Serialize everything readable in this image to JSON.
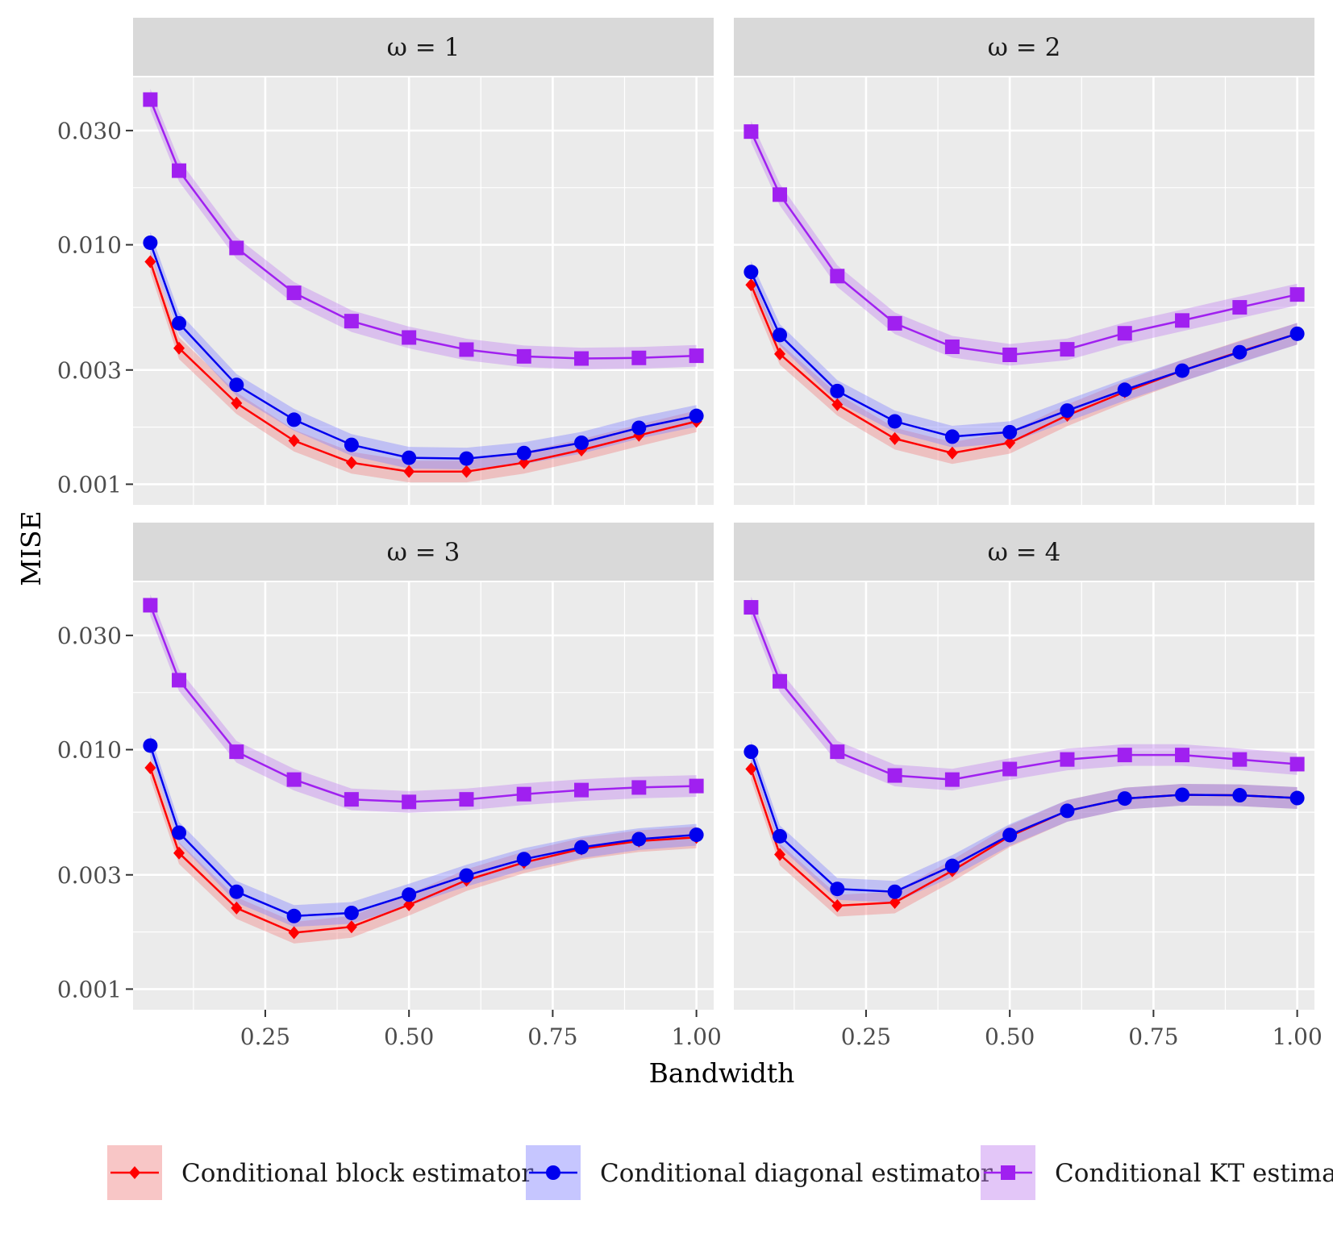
{
  "chart_data": {
    "type": "line",
    "xlabel": "Bandwidth",
    "ylabel": "MISE",
    "yscale": "log10",
    "ylim": [
      0.00082,
      0.05
    ],
    "xlim": [
      0.02,
      1.03
    ],
    "x_ticks": [
      {
        "value": 0.25,
        "label": "0.25"
      },
      {
        "value": 0.5,
        "label": "0.50"
      },
      {
        "value": 0.75,
        "label": "0.75"
      },
      {
        "value": 1.0,
        "label": "1.00"
      }
    ],
    "y_ticks": [
      {
        "value": 0.001,
        "label": "0.001"
      },
      {
        "value": 0.003,
        "label": "0.003"
      },
      {
        "value": 0.01,
        "label": "0.010"
      },
      {
        "value": 0.03,
        "label": "0.030"
      }
    ],
    "x": [
      0.05,
      0.1,
      0.2,
      0.3,
      0.4,
      0.5,
      0.6,
      0.7,
      0.8,
      0.9,
      1.0
    ],
    "series_meta": [
      {
        "name": "Conditional block estimator",
        "color": "#ff0000",
        "fill": "#f08080",
        "marker": "diamond"
      },
      {
        "name": "Conditional diagonal estimator",
        "color": "#0000ee",
        "fill": "#8080ff",
        "marker": "circle"
      },
      {
        "name": "Conditional KT estimator",
        "color": "#a020f0",
        "fill": "#c080f0",
        "marker": "square"
      }
    ],
    "panels": [
      {
        "label": "ω = 1",
        "series": [
          {
            "values": [
              0.0085,
              0.0037,
              0.00218,
              0.00152,
              0.00123,
              0.00113,
              0.00113,
              0.00123,
              0.00139,
              0.0016,
              0.00183
            ]
          },
          {
            "values": [
              0.0102,
              0.0047,
              0.0026,
              0.00186,
              0.00146,
              0.00129,
              0.00128,
              0.00135,
              0.00149,
              0.00172,
              0.00193
            ]
          },
          {
            "values": [
              0.0404,
              0.0204,
              0.0097,
              0.0063,
              0.0048,
              0.0041,
              0.00365,
              0.00342,
              0.00335,
              0.00337,
              0.00344
            ]
          }
        ]
      },
      {
        "label": "ω = 2",
        "series": [
          {
            "values": [
              0.0068,
              0.0035,
              0.00215,
              0.00155,
              0.00135,
              0.00149,
              0.00194,
              0.00243,
              0.00298,
              0.00358,
              0.00425
            ]
          },
          {
            "values": [
              0.0077,
              0.0042,
              0.00245,
              0.00183,
              0.00158,
              0.00165,
              0.00203,
              0.00248,
              0.00298,
              0.00356,
              0.00425
            ]
          },
          {
            "values": [
              0.0297,
              0.0162,
              0.0074,
              0.0047,
              0.00375,
              0.00347,
              0.00366,
              0.00427,
              0.00483,
              0.00548,
              0.0062
            ]
          }
        ]
      },
      {
        "label": "ω = 3",
        "series": [
          {
            "values": [
              0.0084,
              0.0037,
              0.00218,
              0.00172,
              0.00182,
              0.00225,
              0.00285,
              0.00338,
              0.00385,
              0.00415,
              0.0043
            ]
          },
          {
            "values": [
              0.0104,
              0.0045,
              0.00255,
              0.00202,
              0.00208,
              0.00248,
              0.00298,
              0.00349,
              0.00391,
              0.00423,
              0.00441
            ]
          },
          {
            "values": [
              0.0401,
              0.0195,
              0.0098,
              0.0075,
              0.0062,
              0.00605,
              0.0062,
              0.00652,
              0.00678,
              0.00695,
              0.00705
            ]
          }
        ]
      },
      {
        "label": "ω = 4",
        "series": [
          {
            "values": [
              0.0083,
              0.00365,
              0.00223,
              0.0023,
              0.00312,
              0.00435,
              0.00555,
              0.00625,
              0.00648,
              0.00645,
              0.00628
            ]
          },
          {
            "values": [
              0.0098,
              0.00435,
              0.00262,
              0.00255,
              0.00327,
              0.0044,
              0.00555,
              0.00625,
              0.00648,
              0.00645,
              0.00628
            ]
          },
          {
            "values": [
              0.0393,
              0.0193,
              0.0098,
              0.0078,
              0.0075,
              0.0083,
              0.0091,
              0.0095,
              0.0095,
              0.0091,
              0.0087
            ]
          }
        ]
      }
    ]
  }
}
